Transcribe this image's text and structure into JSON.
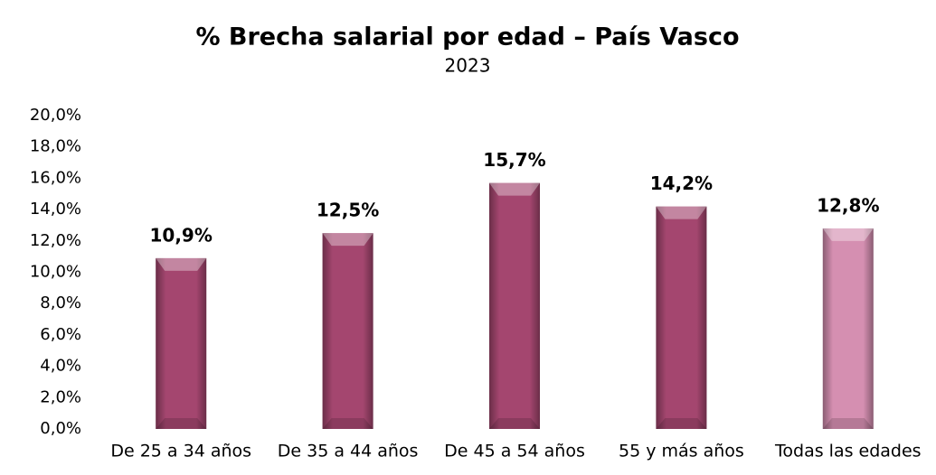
{
  "chart_data": {
    "type": "bar",
    "title": "% Brecha salarial por edad – País Vasco",
    "subtitle": "2023",
    "categories": [
      "De 25 a 34 años",
      "De 35 a 44 años",
      "De 45 a 54 años",
      "55 y más años",
      "Todas las edades"
    ],
    "values": [
      10.9,
      12.5,
      15.7,
      14.2,
      12.8
    ],
    "value_labels": [
      "10,9%",
      "12,5%",
      "15,7%",
      "14,2%",
      "12,8%"
    ],
    "colors": [
      "#a4466f",
      "#a4466f",
      "#a4466f",
      "#a4466f",
      "#d58fb1"
    ],
    "ylim": [
      0,
      20
    ],
    "yticks": [
      {
        "value": 0,
        "label": "0,0%"
      },
      {
        "value": 2,
        "label": "2,0%"
      },
      {
        "value": 4,
        "label": "4,0%"
      },
      {
        "value": 6,
        "label": "6,0%"
      },
      {
        "value": 8,
        "label": "8,0%"
      },
      {
        "value": 10,
        "label": "10,0%"
      },
      {
        "value": 12,
        "label": "12,0%"
      },
      {
        "value": 14,
        "label": "14,0%"
      },
      {
        "value": 16,
        "label": "16,0%"
      },
      {
        "value": 18,
        "label": "18,0%"
      },
      {
        "value": 20,
        "label": "20,0%"
      }
    ],
    "grid": false
  }
}
